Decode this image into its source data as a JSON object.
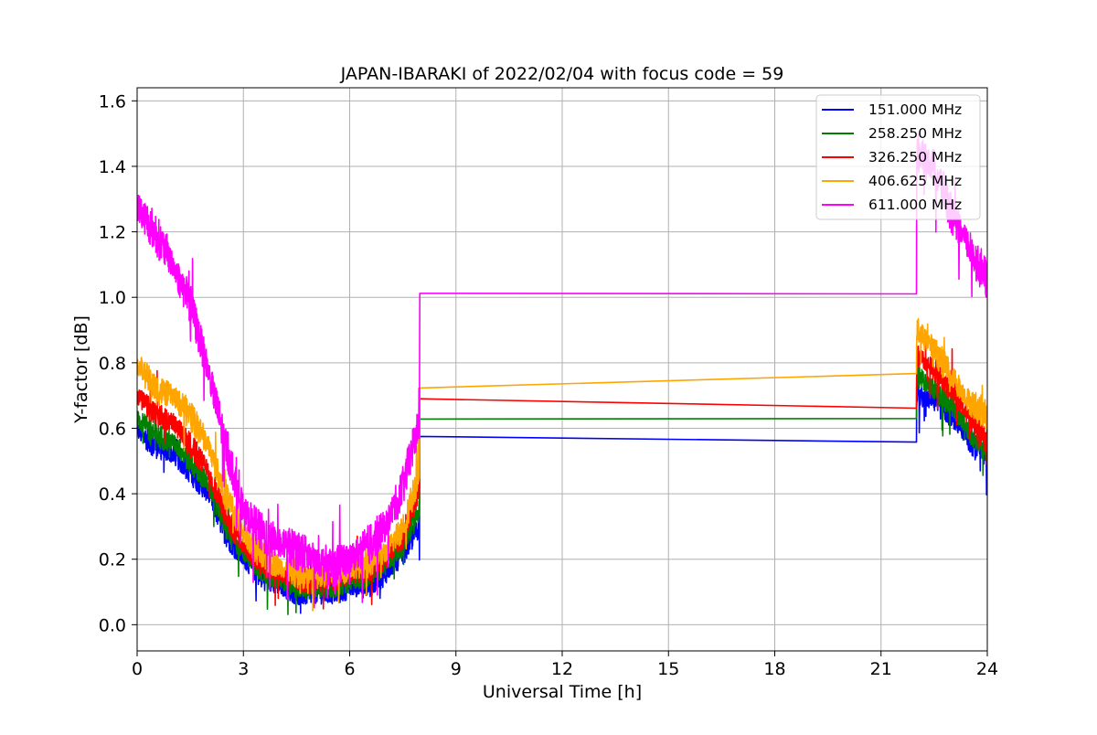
{
  "chart_data": {
    "type": "line",
    "title": "JAPAN-IBARAKI of 2022/02/04 with focus code = 59",
    "xlabel": "Universal Time [h]",
    "ylabel": "Y-factor [dB]",
    "xlim": [
      0,
      24
    ],
    "ylim": [
      -0.08,
      1.64
    ],
    "xticks": [
      0,
      3,
      6,
      9,
      12,
      15,
      18,
      21,
      24
    ],
    "xtick_labels": [
      "0",
      "3",
      "6",
      "9",
      "12",
      "15",
      "18",
      "21",
      "24"
    ],
    "yticks": [
      0.0,
      0.2,
      0.4,
      0.6,
      0.8,
      1.0,
      1.2,
      1.4,
      1.6
    ],
    "ytick_labels": [
      "0.0",
      "0.2",
      "0.4",
      "0.6",
      "0.8",
      "1.0",
      "1.2",
      "1.4",
      "1.6"
    ],
    "grid": true,
    "legend_position": "top-right",
    "noise_note_x_range": [
      [
        0,
        8
      ],
      [
        22,
        24
      ]
    ],
    "series": [
      {
        "name": "151.000 MHz",
        "color": "#0000ff",
        "noise": 0.025,
        "x": [
          0,
          0.5,
          1,
          1.5,
          2,
          2.5,
          3,
          3.5,
          4,
          4.5,
          5,
          5.5,
          6,
          6.5,
          7,
          7.5,
          7.97,
          7.98,
          22.0,
          22.01,
          22.5,
          23,
          23.5,
          24
        ],
        "y": [
          0.59,
          0.55,
          0.52,
          0.47,
          0.4,
          0.28,
          0.2,
          0.15,
          0.12,
          0.1,
          0.09,
          0.1,
          0.11,
          0.12,
          0.15,
          0.22,
          0.3,
          0.575,
          0.59,
          0.7,
          0.68,
          0.64,
          0.56,
          0.5
        ]
      },
      {
        "name": "258.250 MHz",
        "color": "#008000",
        "noise": 0.025,
        "x": [
          0,
          0.5,
          1,
          1.5,
          2,
          2.5,
          3,
          3.5,
          4,
          4.5,
          5,
          5.5,
          6,
          6.5,
          7,
          7.5,
          7.97,
          7.98,
          22.0,
          22.01,
          22.5,
          23,
          23.5,
          24
        ],
        "y": [
          0.63,
          0.58,
          0.56,
          0.5,
          0.43,
          0.3,
          0.22,
          0.17,
          0.14,
          0.12,
          0.11,
          0.12,
          0.13,
          0.15,
          0.18,
          0.25,
          0.35,
          0.628,
          0.642,
          0.76,
          0.72,
          0.67,
          0.59,
          0.53
        ]
      },
      {
        "name": "326.250 MHz",
        "color": "#ff0000",
        "noise": 0.025,
        "x": [
          0,
          0.5,
          1,
          1.5,
          2,
          2.5,
          3,
          3.5,
          4,
          4.5,
          5,
          5.5,
          6,
          6.5,
          7,
          7.5,
          7.97,
          7.98,
          22.0,
          22.01,
          22.5,
          23,
          23.5,
          24
        ],
        "y": [
          0.7,
          0.64,
          0.62,
          0.55,
          0.47,
          0.33,
          0.24,
          0.19,
          0.16,
          0.14,
          0.13,
          0.14,
          0.15,
          0.17,
          0.2,
          0.27,
          0.42,
          0.69,
          0.695,
          0.82,
          0.78,
          0.72,
          0.63,
          0.56
        ]
      },
      {
        "name": "406.625 MHz",
        "color": "#ffa500",
        "noise": 0.03,
        "x": [
          0,
          0.5,
          1,
          1.5,
          2,
          2.5,
          3,
          3.5,
          4,
          4.5,
          5,
          5.5,
          6,
          6.5,
          7,
          7.5,
          7.97,
          7.98,
          22.0,
          22.01,
          22.5,
          23,
          23.5,
          24
        ],
        "y": [
          0.8,
          0.72,
          0.7,
          0.64,
          0.55,
          0.4,
          0.28,
          0.21,
          0.18,
          0.16,
          0.15,
          0.16,
          0.17,
          0.19,
          0.22,
          0.3,
          0.46,
          0.723,
          0.745,
          0.9,
          0.84,
          0.76,
          0.68,
          0.64
        ]
      },
      {
        "name": "611.000 MHz",
        "color": "#ff00ff",
        "noise": 0.04,
        "x": [
          0,
          0.5,
          1,
          1.5,
          2,
          2.5,
          3,
          3.5,
          4,
          4.5,
          5,
          5.5,
          6,
          6.5,
          7,
          7.5,
          7.97,
          7.98,
          22.0,
          22.01,
          22.5,
          23,
          23.5,
          24
        ],
        "y": [
          1.28,
          1.2,
          1.1,
          0.98,
          0.78,
          0.55,
          0.35,
          0.28,
          0.25,
          0.23,
          0.2,
          0.18,
          0.2,
          0.24,
          0.3,
          0.42,
          0.62,
          1.012,
          1.042,
          1.45,
          1.4,
          1.25,
          1.15,
          1.05
        ]
      }
    ]
  }
}
